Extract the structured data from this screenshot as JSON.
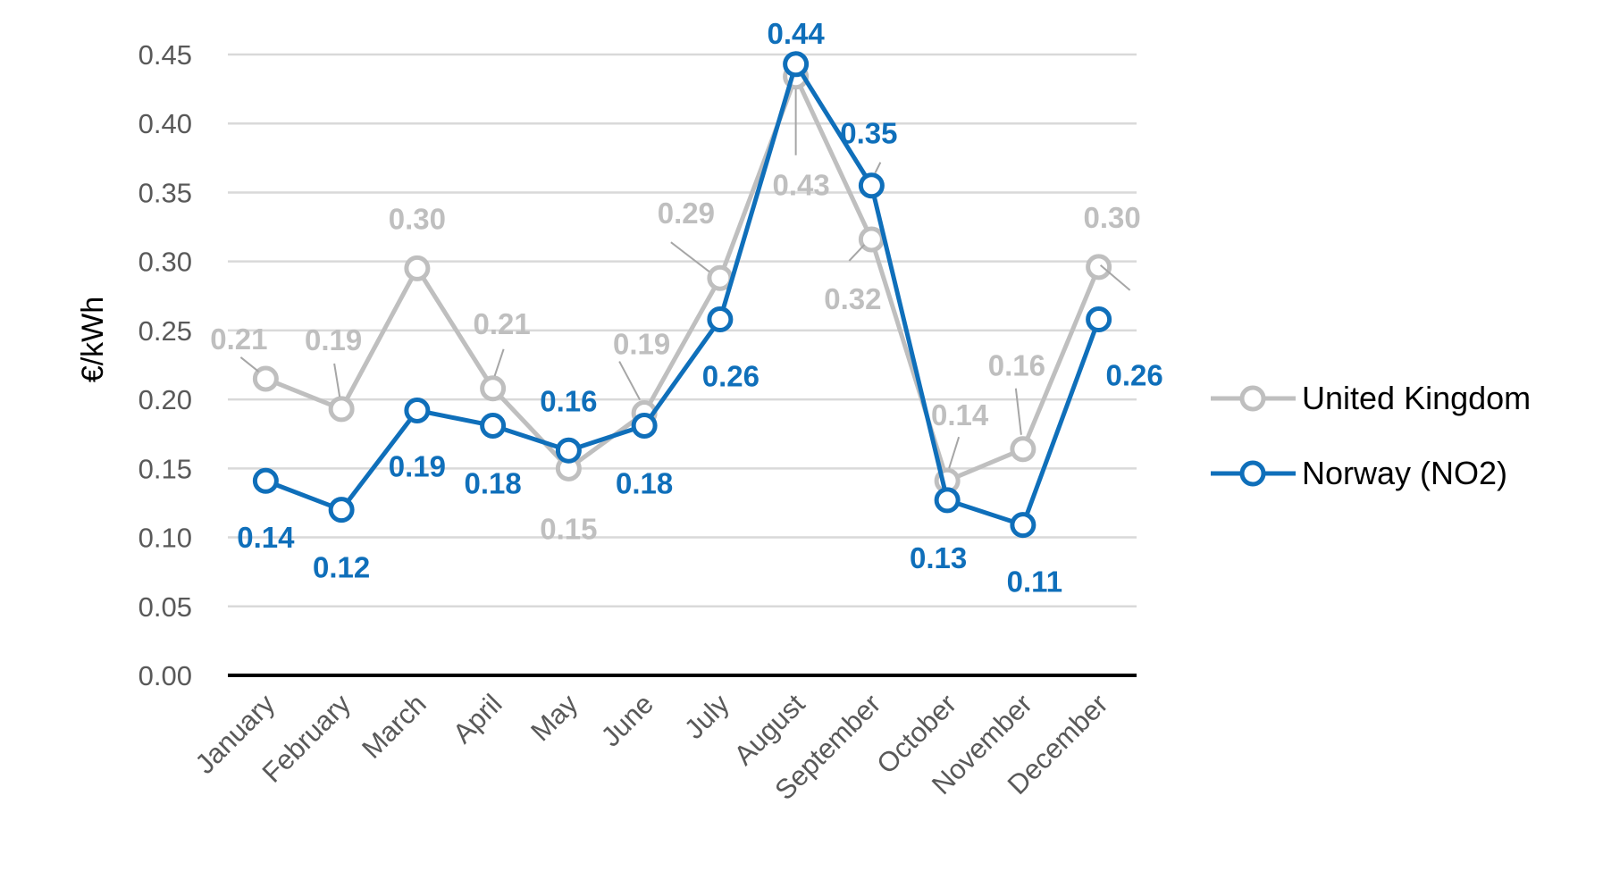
{
  "chart_data": {
    "type": "line",
    "ylabel": "€/kWh",
    "ylim": [
      0,
      0.45
    ],
    "yticks": [
      "0.00",
      "0.05",
      "0.10",
      "0.15",
      "0.20",
      "0.25",
      "0.30",
      "0.35",
      "0.40",
      "0.45"
    ],
    "grid": true,
    "legend_position": "right",
    "categories": [
      "January",
      "February",
      "March",
      "April",
      "May",
      "June",
      "July",
      "August",
      "September",
      "October",
      "November",
      "December"
    ],
    "series": [
      {
        "name": "United Kingdom",
        "color": "#BFBFBF",
        "values": [
          0.215,
          0.193,
          0.295,
          0.208,
          0.15,
          0.19,
          0.288,
          0.434,
          0.316,
          0.141,
          0.164,
          0.296
        ],
        "data_labels": [
          "0.21",
          "0.19",
          "0.30",
          "0.21",
          "0.15",
          "0.19",
          "0.29",
          "0.43",
          "0.32",
          "0.14",
          "0.16",
          "0.30"
        ]
      },
      {
        "name": "Norway (NO2)",
        "color": "#0F6FBA",
        "values": [
          0.141,
          0.12,
          0.192,
          0.181,
          0.163,
          0.181,
          0.258,
          0.443,
          0.355,
          0.127,
          0.109,
          0.258
        ],
        "data_labels": [
          "0.14",
          "0.12",
          "0.19",
          "0.18",
          "0.16",
          "0.18",
          "0.26",
          "0.44",
          "0.35",
          "0.13",
          "0.11",
          "0.26"
        ]
      }
    ]
  }
}
